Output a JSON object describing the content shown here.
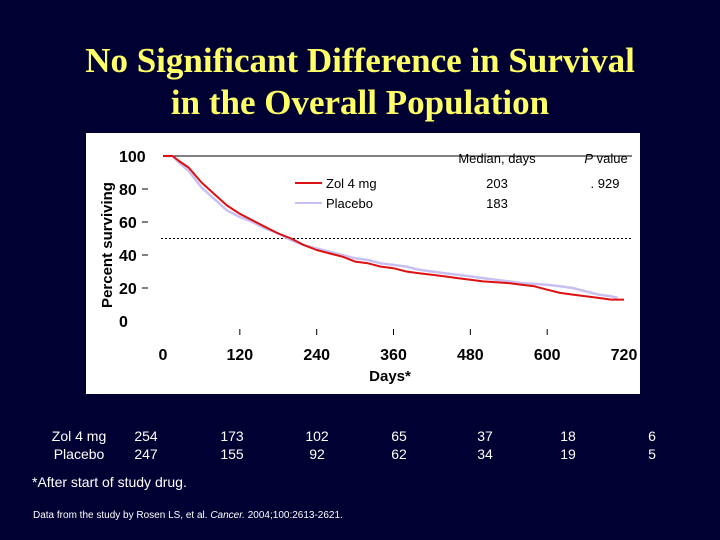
{
  "slide": {
    "title_line1": "No Significant Difference in Survival",
    "title_line2": "in the Overall Population",
    "footnote": "*After start of study drug.",
    "source_prefix": "Data from the study by Rosen LS, et al. ",
    "source_journal": "Cancer.",
    "source_suffix": " 2004;100:2613-2621."
  },
  "legend": {
    "header_median": "Median, days",
    "header_p_italic": "P",
    "header_p_rest": " value",
    "entries": [
      {
        "name": "Zol 4 mg",
        "median": "203",
        "p": ". 929",
        "color": "#dd1111"
      },
      {
        "name": "Placebo",
        "median": "183",
        "p": "",
        "color": "#c8c0f0"
      }
    ]
  },
  "risk_table": {
    "rows": [
      {
        "label": "Zol 4 mg",
        "values": [
          "254",
          "173",
          "102",
          "65",
          "37",
          "18",
          "6"
        ]
      },
      {
        "label": "Placebo",
        "values": [
          "247",
          "155",
          "92",
          "62",
          "34",
          "19",
          "5"
        ]
      }
    ]
  },
  "chart_data": {
    "type": "line",
    "xlabel": "Days*",
    "ylabel": "Percent surviving",
    "xlim": [
      0,
      720
    ],
    "ylim": [
      0,
      100
    ],
    "xticks": [
      0,
      120,
      240,
      360,
      480,
      600,
      720
    ],
    "yticks": [
      0,
      20,
      40,
      60,
      80,
      100
    ],
    "median_reference_y": 50,
    "series": [
      {
        "name": "Zol 4 mg",
        "color": "#dd1111",
        "points": [
          [
            0,
            100
          ],
          [
            15,
            100
          ],
          [
            25,
            97
          ],
          [
            40,
            93
          ],
          [
            60,
            84
          ],
          [
            80,
            77
          ],
          [
            100,
            70
          ],
          [
            120,
            65
          ],
          [
            140,
            61
          ],
          [
            160,
            57
          ],
          [
            180,
            53
          ],
          [
            200,
            50
          ],
          [
            220,
            46
          ],
          [
            240,
            43
          ],
          [
            260,
            41
          ],
          [
            280,
            39
          ],
          [
            300,
            36
          ],
          [
            320,
            35
          ],
          [
            340,
            33
          ],
          [
            360,
            32
          ],
          [
            380,
            30
          ],
          [
            400,
            29
          ],
          [
            420,
            28
          ],
          [
            440,
            27
          ],
          [
            460,
            26
          ],
          [
            480,
            25
          ],
          [
            500,
            24
          ],
          [
            520,
            23.5
          ],
          [
            540,
            23
          ],
          [
            560,
            22
          ],
          [
            580,
            21
          ],
          [
            600,
            19
          ],
          [
            620,
            17
          ],
          [
            640,
            16
          ],
          [
            660,
            15
          ],
          [
            680,
            14
          ],
          [
            700,
            13
          ],
          [
            720,
            13
          ]
        ]
      },
      {
        "name": "Placebo",
        "color": "#c8c0f0",
        "points": [
          [
            0,
            100
          ],
          [
            15,
            100
          ],
          [
            25,
            96
          ],
          [
            40,
            91
          ],
          [
            60,
            81
          ],
          [
            80,
            74
          ],
          [
            100,
            67
          ],
          [
            120,
            63
          ],
          [
            140,
            60
          ],
          [
            160,
            56
          ],
          [
            180,
            53
          ],
          [
            200,
            49
          ],
          [
            220,
            46
          ],
          [
            240,
            44
          ],
          [
            260,
            42
          ],
          [
            280,
            40
          ],
          [
            300,
            38
          ],
          [
            320,
            37
          ],
          [
            340,
            35
          ],
          [
            360,
            34
          ],
          [
            380,
            33
          ],
          [
            400,
            31
          ],
          [
            420,
            30
          ],
          [
            440,
            29
          ],
          [
            460,
            28
          ],
          [
            480,
            27
          ],
          [
            500,
            26
          ],
          [
            520,
            25
          ],
          [
            540,
            24
          ],
          [
            560,
            23
          ],
          [
            580,
            22.5
          ],
          [
            600,
            22
          ],
          [
            620,
            21
          ],
          [
            640,
            20
          ],
          [
            660,
            18
          ],
          [
            680,
            16
          ],
          [
            700,
            15
          ],
          [
            710,
            14
          ]
        ]
      }
    ]
  }
}
